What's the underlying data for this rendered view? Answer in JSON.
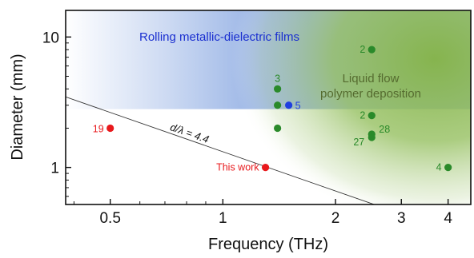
{
  "chart_data": {
    "type": "scatter",
    "xlabel": "Frequency (THz)",
    "ylabel": "Diameter (mm)",
    "x_scale": "log",
    "y_scale": "log",
    "xlim": [
      0.38,
      4.6
    ],
    "ylim": [
      0.52,
      16
    ],
    "x_ticks": [
      {
        "value": 0.5,
        "label": "0.5"
      },
      {
        "value": 1,
        "label": "1"
      },
      {
        "value": 2,
        "label": "2"
      },
      {
        "value": 3,
        "label": "3"
      },
      {
        "value": 4,
        "label": "4"
      }
    ],
    "y_ticks": [
      {
        "value": 1,
        "label": "1"
      },
      {
        "value": 10,
        "label": "10"
      }
    ],
    "regions": [
      {
        "name": "rolling",
        "label": "Rolling metallic-dielectric films",
        "color": "#6f95db"
      },
      {
        "name": "liquid",
        "label_lines": [
          "Liquid flow",
          "polymer deposition"
        ],
        "color": "#8db95a"
      }
    ],
    "guide_line": {
      "label": "d/λ = 4.4",
      "ratio": 4.4
    },
    "series": [
      {
        "name": "This work",
        "color": "#e8191c",
        "points": [
          {
            "x": 1.3,
            "y": 1.0,
            "label": "This work"
          },
          {
            "x": 0.5,
            "y": 2.0,
            "label": "19"
          }
        ]
      },
      {
        "name": "Rolling metallic-dielectric films",
        "color": "#1f3fe0",
        "points": [
          {
            "x": 1.5,
            "y": 3.0,
            "label": "5"
          }
        ]
      },
      {
        "name": "Liquid flow polymer deposition",
        "color": "#2a8a2a",
        "points": [
          {
            "x": 1.4,
            "y": 4.0,
            "label": "3"
          },
          {
            "x": 1.4,
            "y": 3.0,
            "label": ""
          },
          {
            "x": 1.4,
            "y": 2.0,
            "label": ""
          },
          {
            "x": 2.5,
            "y": 8.0,
            "label": "2"
          },
          {
            "x": 2.5,
            "y": 2.5,
            "label": "2"
          },
          {
            "x": 2.5,
            "y": 1.8,
            "label": "28"
          },
          {
            "x": 2.5,
            "y": 1.7,
            "label": "27"
          },
          {
            "x": 4.0,
            "y": 1.0,
            "label": "4"
          }
        ]
      }
    ]
  }
}
